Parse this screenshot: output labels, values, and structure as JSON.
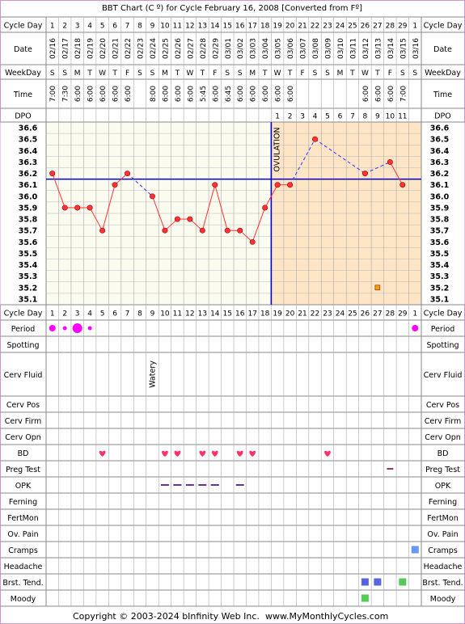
{
  "title": "BBT Chart (C º) for Cycle February 16, 2008  [Converted from Fº]",
  "copyright": "Copyright © 2003-2024 bInfinity Web Inc.",
  "website": "www.MyMonthlyCycles.com",
  "colors": {
    "outer_border": "#cc99cc",
    "bg_pre": "#fbfbf0",
    "bg_post": "#fde5c6",
    "row_header_bg": "#ffffff",
    "coverline": "#0000cc",
    "temp_line": "#ff3333",
    "temp_point": "#ff3333",
    "projected_line": "#3333ff",
    "period": "#ff00ff",
    "bd": "#ff3366",
    "opk": "#663399",
    "preg": "#993366",
    "cramps": "#6699ff",
    "tend": "#5566dd",
    "green": "#55cc55",
    "ovulation_line": "#0000cc"
  },
  "labels": {
    "cycle_day": "Cycle Day",
    "date": "Date",
    "weekday": "WeekDay",
    "time": "Time",
    "dpo": "DPO",
    "ovulation": "OVULATION"
  },
  "cycle_days": [
    "1",
    "2",
    "3",
    "4",
    "5",
    "6",
    "7",
    "8",
    "9",
    "10",
    "11",
    "12",
    "13",
    "14",
    "15",
    "16",
    "17",
    "18",
    "19",
    "20",
    "21",
    "22",
    "23",
    "24",
    "25",
    "26",
    "27",
    "28",
    "29",
    "1"
  ],
  "dates": [
    "02/16",
    "02/17",
    "02/18",
    "02/19",
    "02/20",
    "02/21",
    "02/22",
    "02/23",
    "02/24",
    "02/25",
    "02/26",
    "02/27",
    "02/28",
    "02/29",
    "03/01",
    "03/02",
    "03/03",
    "03/04",
    "03/05",
    "03/06",
    "03/07",
    "03/08",
    "03/09",
    "03/10",
    "03/11",
    "03/12",
    "03/13",
    "03/14",
    "03/15",
    "03/16"
  ],
  "weekdays": [
    "S",
    "S",
    "M",
    "T",
    "W",
    "T",
    "F",
    "S",
    "S",
    "M",
    "T",
    "W",
    "T",
    "F",
    "S",
    "S",
    "M",
    "T",
    "W",
    "T",
    "F",
    "S",
    "S",
    "M",
    "T",
    "W",
    "T",
    "F",
    "S",
    "S"
  ],
  "times": [
    "7:00",
    "7:30",
    "6:00",
    "6:00",
    "6:00",
    "6:00",
    "6:00",
    "",
    "8:00",
    "6:00",
    "6:00",
    "6:00",
    "5:45",
    "6:00",
    "6:45",
    "6:00",
    "6:00",
    "6:00",
    "6:00",
    "6:00",
    "",
    "",
    "",
    "",
    "",
    "6:00",
    "6:00",
    "6:00",
    "7:00",
    ""
  ],
  "dpo": [
    "",
    "",
    "",
    "",
    "",
    "",
    "",
    "",
    "",
    "",
    "",
    "",
    "",
    "",
    "",
    "",
    "",
    "",
    "1",
    "2",
    "3",
    "4",
    "5",
    "6",
    "7",
    "8",
    "9",
    "10",
    "11",
    ""
  ],
  "temp_axis_labels": [
    "36.6",
    "36.5",
    "36.4",
    "36.3",
    "36.2",
    "36.1",
    "36.0",
    "35.9",
    "35.8",
    "35.7",
    "35.6",
    "35.5",
    "35.4",
    "35.3",
    "35.2",
    "35.1"
  ],
  "bottom_rows": [
    {
      "label": "Period"
    },
    {
      "label": "Spotting"
    },
    {
      "label": "Cerv Fluid"
    },
    {
      "label": "Cerv Pos"
    },
    {
      "label": "Cerv Firm"
    },
    {
      "label": "Cerv Opn"
    },
    {
      "label": "BD"
    },
    {
      "label": "Preg Test"
    },
    {
      "label": "OPK"
    },
    {
      "label": "Ferning"
    },
    {
      "label": "FertMon"
    },
    {
      "label": "Ov. Pain"
    },
    {
      "label": "Cramps"
    },
    {
      "label": "Headache"
    },
    {
      "label": "Brst. Tend."
    },
    {
      "label": "Moody"
    }
  ],
  "cerv_fluid_note": "Watery",
  "chart_data": {
    "type": "line",
    "title": "BBT Chart (C º) for Cycle February 16, 2008  [Converted from Fº]",
    "xlabel": "Cycle Day",
    "ylabel": "",
    "ylim": [
      35.1,
      36.6
    ],
    "grid": true,
    "x": [
      1,
      2,
      3,
      4,
      5,
      6,
      7,
      8,
      9,
      10,
      11,
      12,
      13,
      14,
      15,
      16,
      17,
      18,
      19,
      20,
      21,
      22,
      23,
      24,
      25,
      26,
      27,
      28,
      29,
      30
    ],
    "series": [
      {
        "values": [
          36.2,
          35.9,
          35.9,
          35.9,
          35.7,
          36.1,
          36.2,
          null,
          36.0,
          35.7,
          35.8,
          35.8,
          35.7,
          36.1,
          35.7,
          35.7,
          35.6,
          35.9,
          36.1,
          36.1,
          null,
          36.5,
          null,
          null,
          null,
          36.2,
          null,
          36.3,
          36.1,
          null
        ]
      }
    ],
    "coverline": 36.15,
    "ovulation_day": 18,
    "special_points": [
      {
        "x": 27,
        "y": 35.2
      }
    ],
    "period": [
      2,
      1,
      3,
      1,
      0,
      0,
      0,
      0,
      0,
      0,
      0,
      0,
      0,
      0,
      0,
      0,
      0,
      0,
      0,
      0,
      0,
      0,
      0,
      0,
      0,
      0,
      0,
      0,
      0,
      2
    ],
    "bd_days": [
      5,
      10,
      11,
      13,
      14,
      16,
      17,
      23
    ],
    "opk_days": [
      10,
      11,
      12,
      13,
      14,
      16
    ],
    "preg_test_days": [
      28
    ],
    "cervical_fluid": [
      {
        "day": 9,
        "value": "Watery"
      }
    ],
    "cramps_days": [
      30
    ],
    "breast_tenderness_days": [
      26,
      27,
      29
    ],
    "moody_days": [
      26
    ]
  }
}
